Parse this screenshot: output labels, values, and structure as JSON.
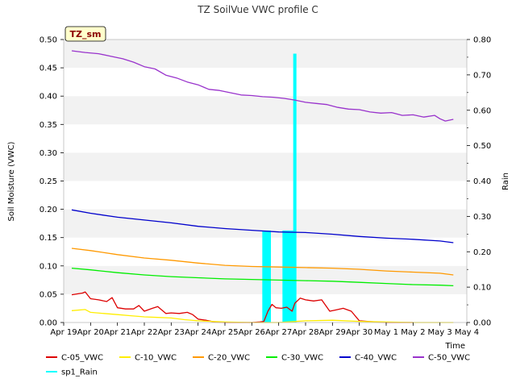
{
  "chart_data": {
    "type": "line",
    "title": "TZ SoilVue VWC profile C",
    "badge": "TZ_sm",
    "xlabel": "Time",
    "ylabel": "Soil Moisture (VWC)",
    "y2label": "Rain",
    "ylim": [
      0,
      0.5
    ],
    "y2lim": [
      0,
      0.8
    ],
    "yticks": [
      "0.00",
      "0.05",
      "0.10",
      "0.15",
      "0.20",
      "0.25",
      "0.30",
      "0.35",
      "0.40",
      "0.45",
      "0.50"
    ],
    "y2ticks": [
      "0.00",
      "0.10",
      "0.20",
      "0.30",
      "0.40",
      "0.50",
      "0.60",
      "0.70",
      "0.80"
    ],
    "xlim": [
      0,
      15
    ],
    "xticks": [
      "Apr 19",
      "Apr 20",
      "Apr 21",
      "Apr 22",
      "Apr 23",
      "Apr 24",
      "Apr 25",
      "Apr 26",
      "Apr 27",
      "Apr 28",
      "Apr 29",
      "Apr 30",
      "May 1",
      "May 2",
      "May 3",
      "May 4"
    ],
    "grid": "horizontal bands",
    "legend": "bottom",
    "series": [
      {
        "name": "C-05_VWC",
        "color": "#dd0000",
        "axis": "left",
        "x": [
          0.3,
          0.7,
          0.8,
          1.0,
          1.3,
          1.6,
          1.8,
          2.0,
          2.3,
          2.6,
          2.8,
          3.0,
          3.3,
          3.5,
          3.8,
          4.0,
          4.3,
          4.6,
          4.8,
          5.0,
          5.3,
          5.6,
          6.0,
          6.5,
          7.0,
          7.3,
          7.45,
          7.6,
          7.75,
          7.9,
          8.1,
          8.3,
          8.5,
          8.6,
          8.8,
          9.0,
          9.3,
          9.6,
          9.9,
          10.1,
          10.4,
          10.7,
          11.0,
          11.3,
          11.6,
          12.0,
          12.5,
          13.0
        ],
        "y": [
          0.049,
          0.052,
          0.054,
          0.042,
          0.04,
          0.037,
          0.044,
          0.026,
          0.024,
          0.024,
          0.03,
          0.02,
          0.025,
          0.028,
          0.016,
          0.017,
          0.016,
          0.018,
          0.014,
          0.006,
          0.004,
          0.001,
          0.0,
          0.0,
          0.0,
          0.001,
          0.002,
          0.02,
          0.032,
          0.026,
          0.025,
          0.027,
          0.02,
          0.034,
          0.043,
          0.04,
          0.038,
          0.04,
          0.02,
          0.022,
          0.025,
          0.02,
          0.003,
          0.002,
          0.001,
          0.0,
          0.0,
          0.0
        ]
      },
      {
        "name": "C-10_VWC",
        "color": "#ffee00",
        "axis": "left",
        "x": [
          0.3,
          0.8,
          1.0,
          1.5,
          2.0,
          2.5,
          3.0,
          3.5,
          4.0,
          4.5,
          5.0,
          5.5,
          6.0,
          7.0,
          8.0,
          9.0,
          10.0,
          11.0,
          12.0,
          13.0,
          14.0,
          14.5
        ],
        "y": [
          0.021,
          0.023,
          0.018,
          0.016,
          0.014,
          0.012,
          0.01,
          0.009,
          0.008,
          0.005,
          0.003,
          0.002,
          0.001,
          0.0,
          0.0,
          0.003,
          0.004,
          0.002,
          0.001,
          0.0,
          0.0,
          0.0
        ]
      },
      {
        "name": "C-20_VWC",
        "color": "#ff9900",
        "axis": "left",
        "x": [
          0.3,
          1.0,
          2.0,
          3.0,
          4.0,
          5.0,
          6.0,
          7.0,
          8.0,
          9.0,
          10.0,
          11.0,
          12.0,
          13.0,
          14.0,
          14.5
        ],
        "y": [
          0.131,
          0.127,
          0.12,
          0.114,
          0.11,
          0.105,
          0.101,
          0.099,
          0.098,
          0.097,
          0.096,
          0.094,
          0.091,
          0.089,
          0.087,
          0.084
        ]
      },
      {
        "name": "C-30_VWC",
        "color": "#00ee00",
        "axis": "left",
        "x": [
          0.3,
          1.0,
          2.0,
          3.0,
          4.0,
          5.0,
          6.0,
          7.0,
          8.0,
          9.0,
          10.0,
          11.0,
          12.0,
          13.0,
          14.0,
          14.5
        ],
        "y": [
          0.096,
          0.093,
          0.088,
          0.084,
          0.081,
          0.079,
          0.077,
          0.076,
          0.075,
          0.074,
          0.073,
          0.071,
          0.069,
          0.067,
          0.066,
          0.065
        ]
      },
      {
        "name": "C-40_VWC",
        "color": "#0000cc",
        "axis": "left",
        "x": [
          0.3,
          1.0,
          2.0,
          3.0,
          4.0,
          5.0,
          6.0,
          7.0,
          8.0,
          9.0,
          10.0,
          11.0,
          12.0,
          13.0,
          14.0,
          14.5
        ],
        "y": [
          0.199,
          0.193,
          0.186,
          0.181,
          0.176,
          0.17,
          0.166,
          0.163,
          0.16,
          0.159,
          0.156,
          0.152,
          0.149,
          0.147,
          0.144,
          0.141
        ]
      },
      {
        "name": "C-50_VWC",
        "color": "#9933cc",
        "axis": "left",
        "x": [
          0.3,
          0.8,
          1.3,
          1.8,
          2.2,
          2.6,
          3.0,
          3.4,
          3.8,
          4.2,
          4.6,
          5.0,
          5.4,
          5.8,
          6.2,
          6.6,
          7.0,
          7.4,
          7.8,
          8.2,
          8.6,
          9.0,
          9.4,
          9.8,
          10.2,
          10.6,
          11.0,
          11.4,
          11.8,
          12.2,
          12.6,
          13.0,
          13.4,
          13.8,
          14.0,
          14.2,
          14.5
        ],
        "y": [
          0.48,
          0.477,
          0.475,
          0.47,
          0.466,
          0.46,
          0.452,
          0.448,
          0.437,
          0.432,
          0.425,
          0.42,
          0.412,
          0.41,
          0.406,
          0.402,
          0.401,
          0.399,
          0.398,
          0.396,
          0.393,
          0.389,
          0.387,
          0.385,
          0.38,
          0.377,
          0.376,
          0.372,
          0.37,
          0.371,
          0.366,
          0.367,
          0.363,
          0.366,
          0.36,
          0.356,
          0.359
        ]
      },
      {
        "name": "sp1_Rain",
        "color": "#00ffff",
        "axis": "right",
        "x": [
          7.45,
          7.55,
          7.65,
          8.2,
          8.3,
          8.4,
          8.5,
          8.6
        ],
        "y": [
          0.26,
          0.26,
          0.26,
          0.26,
          0.26,
          0.26,
          0.26,
          0.76
        ]
      }
    ]
  }
}
